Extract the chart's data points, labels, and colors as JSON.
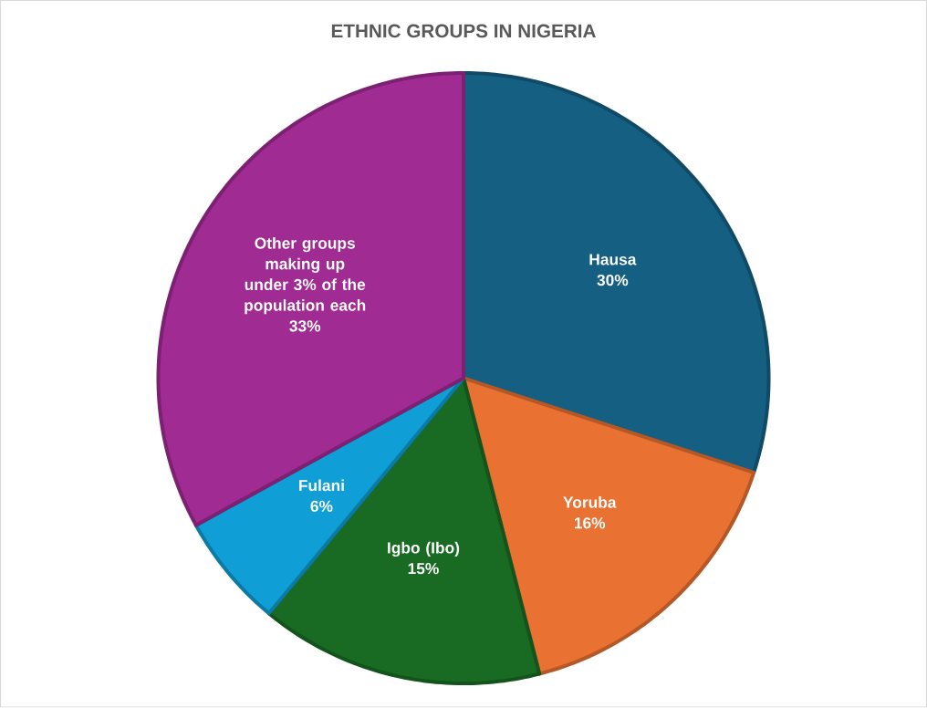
{
  "chart_data": {
    "type": "pie",
    "title": "ETHNIC GROUPS IN NIGERIA",
    "categories": [
      "Hausa",
      "Yoruba",
      "Igbo (Ibo)",
      "Fulani",
      "Other groups making up under 3% of the population each"
    ],
    "values": [
      30,
      16,
      15,
      6,
      33
    ],
    "colors": [
      "#156082",
      "#e97132",
      "#196b24",
      "#0f9ed5",
      "#a02b93"
    ],
    "value_labels": [
      "30%",
      "16%",
      "15%",
      "6%",
      "33%"
    ]
  }
}
